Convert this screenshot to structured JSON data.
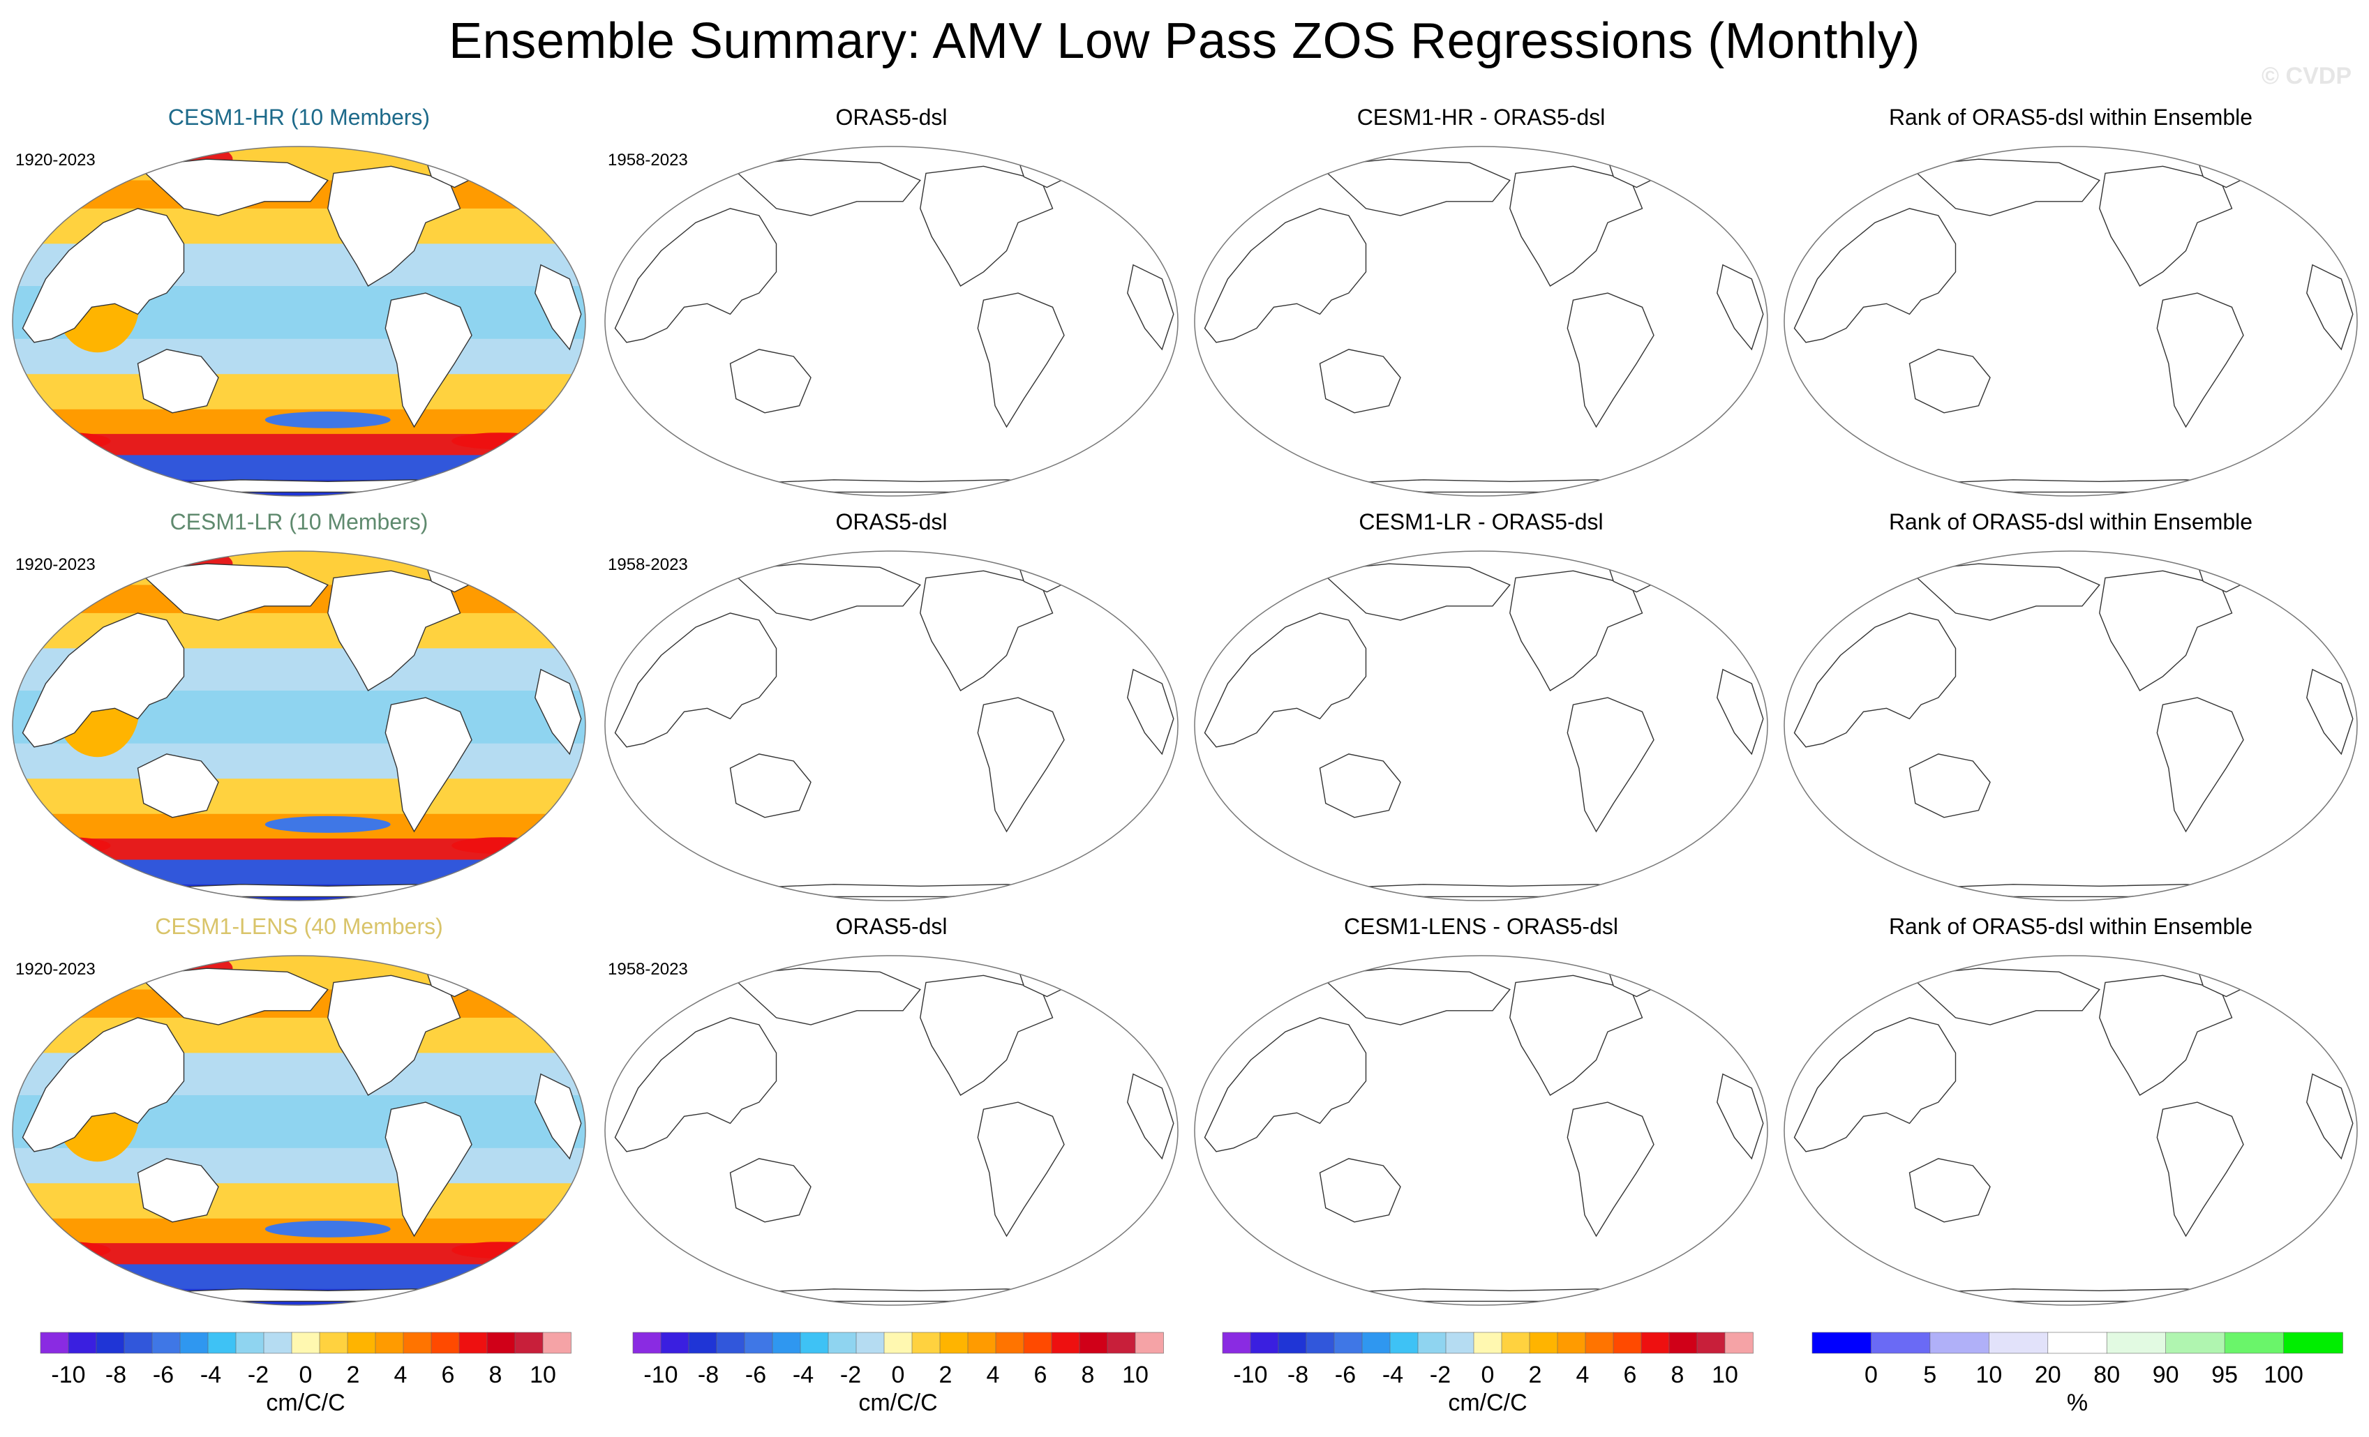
{
  "title": "Ensemble Summary: AMV Low Pass ZOS Regressions (Monthly)",
  "watermark": "© CVDP",
  "chart_data": {
    "type": "map-grid",
    "rows": [
      {
        "panels": [
          {
            "title": "CESM1-HR (10 Members)",
            "title_color": "#1d6a8a",
            "period": "1920-2023",
            "filled": true
          },
          {
            "title": "ORAS5-dsl",
            "title_color": "#000000",
            "period": "1958-2023",
            "filled": false
          },
          {
            "title": "CESM1-HR - ORAS5-dsl",
            "title_color": "#000000",
            "period": "",
            "filled": false
          },
          {
            "title": "Rank of ORAS5-dsl within Ensemble",
            "title_color": "#000000",
            "period": "",
            "filled": false
          }
        ]
      },
      {
        "panels": [
          {
            "title": "CESM1-LR (10 Members)",
            "title_color": "#5f8a6e",
            "period": "1920-2023",
            "filled": true
          },
          {
            "title": "ORAS5-dsl",
            "title_color": "#000000",
            "period": "1958-2023",
            "filled": false
          },
          {
            "title": "CESM1-LR - ORAS5-dsl",
            "title_color": "#000000",
            "period": "",
            "filled": false
          },
          {
            "title": "Rank of ORAS5-dsl within Ensemble",
            "title_color": "#000000",
            "period": "",
            "filled": false
          }
        ]
      },
      {
        "panels": [
          {
            "title": "CESM1-LENS (40 Members)",
            "title_color": "#d9c46a",
            "period": "1920-2023",
            "filled": true
          },
          {
            "title": "ORAS5-dsl",
            "title_color": "#000000",
            "period": "1958-2023",
            "filled": false
          },
          {
            "title": "CESM1-LENS - ORAS5-dsl",
            "title_color": "#000000",
            "period": "",
            "filled": false
          },
          {
            "title": "Rank of ORAS5-dsl within Ensemble",
            "title_color": "#000000",
            "period": "",
            "filled": false
          }
        ]
      }
    ],
    "colorbars": [
      {
        "unit": "cm/C/C",
        "tick_labels": [
          "-10",
          "-8",
          "-6",
          "-4",
          "-2",
          "0",
          "2",
          "4",
          "6",
          "8",
          "10"
        ],
        "colors": [
          "#8a2be2",
          "#3a1fe0",
          "#1f35d6",
          "#3157db",
          "#3f77e6",
          "#2f97f0",
          "#3ec2f5",
          "#8fd4f0",
          "#b5dcf2",
          "#fff8b0",
          "#ffd23f",
          "#ffb400",
          "#ff9b00",
          "#ff7400",
          "#ff4a00",
          "#ee1010",
          "#d00018",
          "#c81f3a",
          "#f5a3a6"
        ]
      },
      {
        "unit": "cm/C/C",
        "tick_labels": [
          "-10",
          "-8",
          "-6",
          "-4",
          "-2",
          "0",
          "2",
          "4",
          "6",
          "8",
          "10"
        ],
        "colors": [
          "#8a2be2",
          "#3a1fe0",
          "#1f35d6",
          "#3157db",
          "#3f77e6",
          "#2f97f0",
          "#3ec2f5",
          "#8fd4f0",
          "#b5dcf2",
          "#fff8b0",
          "#ffd23f",
          "#ffb400",
          "#ff9b00",
          "#ff7400",
          "#ff4a00",
          "#ee1010",
          "#d00018",
          "#c81f3a",
          "#f5a3a6"
        ]
      },
      {
        "unit": "cm/C/C",
        "tick_labels": [
          "-10",
          "-8",
          "-6",
          "-4",
          "-2",
          "0",
          "2",
          "4",
          "6",
          "8",
          "10"
        ],
        "colors": [
          "#8a2be2",
          "#3a1fe0",
          "#1f35d6",
          "#3157db",
          "#3f77e6",
          "#2f97f0",
          "#3ec2f5",
          "#8fd4f0",
          "#b5dcf2",
          "#fff8b0",
          "#ffd23f",
          "#ffb400",
          "#ff9b00",
          "#ff7400",
          "#ff4a00",
          "#ee1010",
          "#d00018",
          "#c81f3a",
          "#f5a3a6"
        ]
      },
      {
        "unit": "%",
        "tick_labels": [
          "0",
          "5",
          "10",
          "20",
          "80",
          "90",
          "95",
          "100"
        ],
        "colors": [
          "#0000ff",
          "#6a6af5",
          "#b0b0f8",
          "#e2e2fa",
          "#ffffff",
          "#e2fae2",
          "#b0f5b0",
          "#6af56a",
          "#00ee00"
        ]
      }
    ]
  }
}
